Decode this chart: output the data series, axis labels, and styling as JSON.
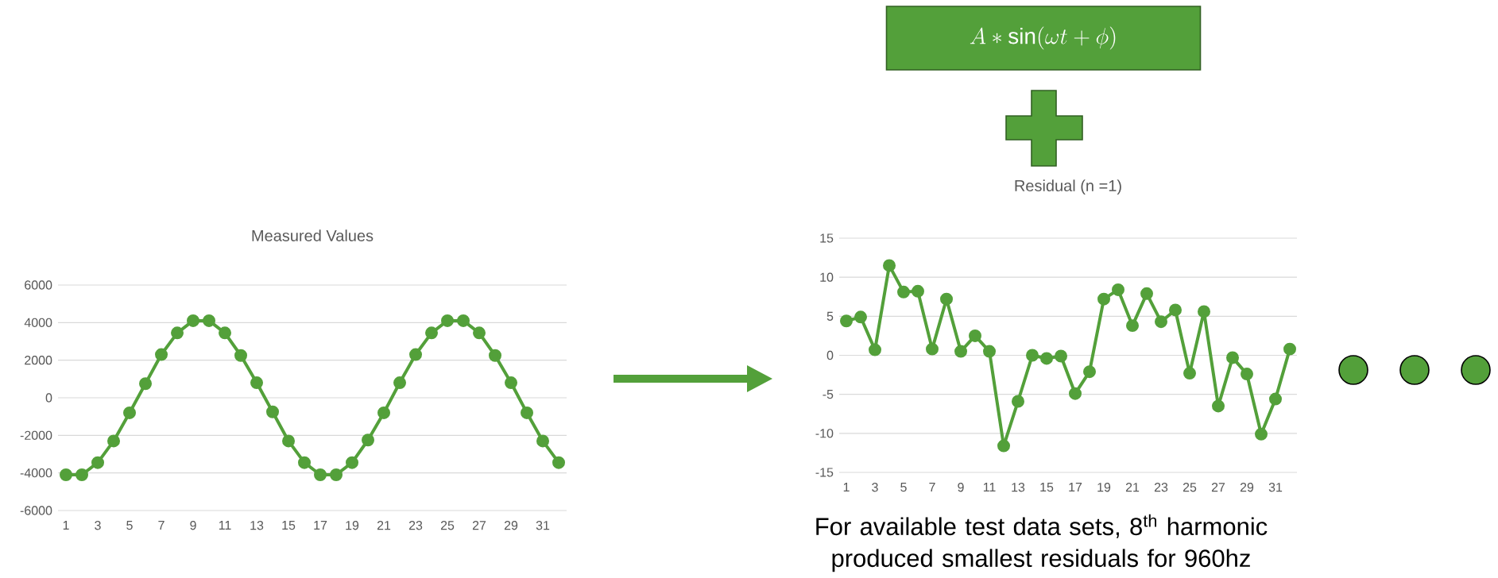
{
  "chart_data": [
    {
      "type": "line",
      "title": "Measured Values",
      "categories": [
        "1",
        null,
        "3",
        null,
        "5",
        null,
        "7",
        null,
        "9",
        null,
        "11",
        null,
        "13",
        null,
        "15",
        null,
        "17",
        null,
        "19",
        null,
        "21",
        null,
        "23",
        null,
        "25",
        null,
        "27",
        null,
        "29",
        null,
        "31",
        null
      ],
      "values": [
        -4100,
        -4100,
        -3450,
        -2300,
        -800,
        750,
        2300,
        3450,
        4100,
        4100,
        3450,
        2250,
        800,
        -750,
        -2300,
        -3450,
        -4100,
        -4100,
        -3450,
        -2250,
        -800,
        800,
        2300,
        3450,
        4100,
        4100,
        3450,
        2250,
        800,
        -800,
        -2300,
        -3450
      ],
      "color": "#53a03a",
      "ylim": [
        -6000,
        6000
      ],
      "yticks": [
        -6000,
        -4000,
        -2000,
        0,
        2000,
        4000,
        6000
      ],
      "grid": "y",
      "marker": "circle"
    },
    {
      "type": "line",
      "title": "Residual (n =1)",
      "categories": [
        "1",
        null,
        "3",
        null,
        "5",
        null,
        "7",
        null,
        "9",
        null,
        "11",
        null,
        "13",
        null,
        "15",
        null,
        "17",
        null,
        "19",
        null,
        "21",
        null,
        "23",
        null,
        "25",
        null,
        "27",
        null,
        "29",
        null,
        "31",
        null
      ],
      "values": [
        4.4,
        4.9,
        0.7,
        11.5,
        8.1,
        8.2,
        0.8,
        7.2,
        0.5,
        2.5,
        0.5,
        -11.6,
        -5.9,
        0.0,
        -0.4,
        -0.1,
        -4.9,
        -2.1,
        7.2,
        8.4,
        3.8,
        7.9,
        4.3,
        5.8,
        -2.3,
        5.6,
        -6.5,
        -0.3,
        -2.4,
        -10.1,
        -5.6,
        0.8
      ],
      "color": "#53a03a",
      "ylim": [
        -15,
        15
      ],
      "yticks": [
        -15,
        -10,
        -5,
        0,
        5,
        10,
        15
      ],
      "grid": "y",
      "marker": "circle",
      "annotations": [
        "A * \\sin(\\omega t + \\phi)",
        "For available test data sets, 8$^{th}$ harmonic produced smallest residuals for 960hz"
      ]
    }
  ]
}
